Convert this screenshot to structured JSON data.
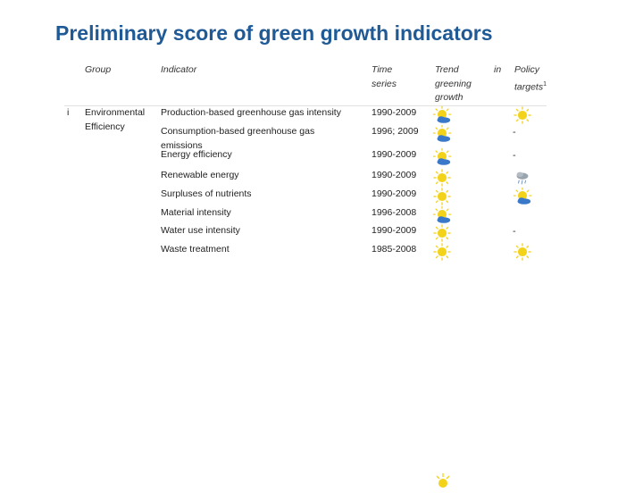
{
  "title": "Preliminary score of green growth indicators",
  "headers": {
    "group": "Group",
    "indicator": "Indicator",
    "time_series": [
      "Time",
      "series"
    ],
    "trend": [
      "Trend",
      "greening",
      "growth"
    ],
    "in": "in",
    "policy": [
      "Policy",
      "targets"
    ],
    "policy_mark": "1"
  },
  "group": {
    "number": "i",
    "name_line1": "Environmental",
    "name_line2": "Efficiency"
  },
  "rows": [
    {
      "indicator": "Production-based greenhouse gas intensity",
      "time_series": "1990-2009",
      "trend_icon": "sun-cloud-icon",
      "policy": "sun-icon"
    },
    {
      "indicator": "Consumption-based greenhouse gas emissions",
      "time_series": "1996; 2009",
      "trend_icon": "sun-cloud-icon",
      "policy": "-"
    },
    {
      "indicator": "Energy efficiency",
      "time_series": "1990-2009",
      "trend_icon": "sun-cloud-icon",
      "policy": "-"
    },
    {
      "indicator": "Renewable energy",
      "time_series": "1990-2009",
      "trend_icon": "sun-icon",
      "policy": "cloud-icon"
    },
    {
      "indicator": "Surpluses of nutrients",
      "time_series": "1990-2009",
      "trend_icon": "sun-icon",
      "policy": "sun-cloud-icon"
    },
    {
      "indicator": "Material intensity",
      "time_series": "1996-2008",
      "trend_icon": "sun-cloud-icon",
      "policy": ""
    },
    {
      "indicator": "Water use intensity",
      "time_series": "1990-2009",
      "trend_icon": "sun-icon",
      "policy": "-"
    },
    {
      "indicator": "Waste treatment",
      "time_series": "1985-2008",
      "trend_icon": "sun-icon",
      "policy": "sun-icon"
    }
  ],
  "colors": {
    "title": "#1f5a96",
    "sun": "#f3d21a",
    "cloud": "#3a78c9"
  }
}
